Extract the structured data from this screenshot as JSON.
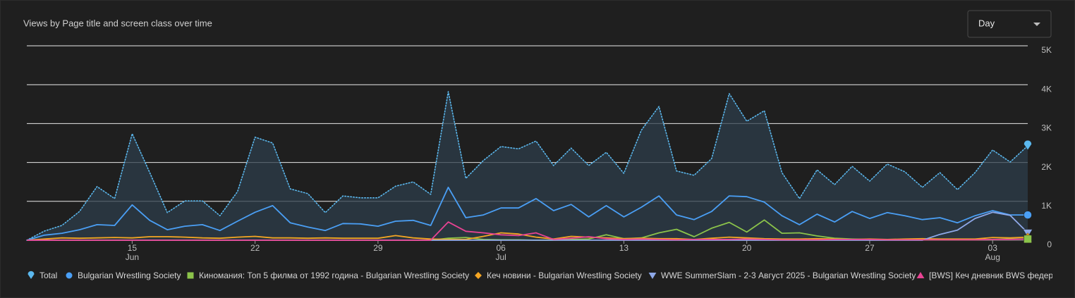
{
  "interval_select": "Day",
  "chart_data": {
    "type": "line",
    "title": "Views by Page title and screen class over time",
    "x": [
      "06-09",
      "06-10",
      "06-11",
      "06-12",
      "06-13",
      "06-14",
      "06-15",
      "06-16",
      "06-17",
      "06-18",
      "06-19",
      "06-20",
      "06-21",
      "06-22",
      "06-23",
      "06-24",
      "06-25",
      "06-26",
      "06-27",
      "06-28",
      "06-29",
      "06-30",
      "07-01",
      "07-02",
      "07-03",
      "07-04",
      "07-05",
      "07-06",
      "07-07",
      "07-08",
      "07-09",
      "07-10",
      "07-11",
      "07-12",
      "07-13",
      "07-14",
      "07-15",
      "07-16",
      "07-17",
      "07-18",
      "07-19",
      "07-20",
      "07-21",
      "07-22",
      "07-23",
      "07-24",
      "07-25",
      "07-26",
      "07-27",
      "07-28",
      "07-29",
      "07-30",
      "07-31",
      "08-01",
      "08-02",
      "08-03",
      "08-04",
      "08-05"
    ],
    "xticks": [
      {
        "value": "06-15",
        "label": "15",
        "month": "Jun"
      },
      {
        "value": "06-22",
        "label": "22"
      },
      {
        "value": "06-29",
        "label": "29"
      },
      {
        "value": "07-06",
        "label": "06",
        "month": "Jul"
      },
      {
        "value": "07-13",
        "label": "13"
      },
      {
        "value": "07-20",
        "label": "20"
      },
      {
        "value": "07-27",
        "label": "27"
      },
      {
        "value": "08-03",
        "label": "03",
        "month": "Aug"
      }
    ],
    "ylim": [
      0,
      5000
    ],
    "yticks": [
      0,
      {
        "value": 1000,
        "label": "1K"
      },
      {
        "value": 2000,
        "label": "2K"
      },
      {
        "value": 3000,
        "label": "3K"
      },
      {
        "value": 4000,
        "label": "4K"
      },
      {
        "value": 5000,
        "label": "5K"
      }
    ],
    "grid": true,
    "legend": "bottom",
    "series": [
      {
        "name": "Total",
        "color": "#5bb8ee",
        "marker": "pin",
        "style": "dotted",
        "area": true,
        "values": [
          0,
          235,
          380,
          740,
          1380,
          1070,
          2740,
          1740,
          710,
          1010,
          1010,
          630,
          1250,
          2650,
          2500,
          1320,
          1200,
          710,
          1140,
          1090,
          1090,
          1390,
          1500,
          1180,
          3820,
          1590,
          2050,
          2410,
          2350,
          2550,
          1920,
          2370,
          1920,
          2260,
          1720,
          2830,
          3440,
          1780,
          1670,
          2100,
          3770,
          3060,
          3330,
          1740,
          1070,
          1810,
          1430,
          1900,
          1520,
          1960,
          1760,
          1360,
          1740,
          1300,
          1740,
          2320,
          2010,
          2430
        ]
      },
      {
        "name": "Bulgarian Wrestling Society",
        "color": "#4a9ff5",
        "marker": "circle",
        "values": [
          0,
          130,
          180,
          270,
          400,
          380,
          910,
          510,
          270,
          360,
          400,
          250,
          490,
          720,
          890,
          450,
          340,
          250,
          430,
          420,
          360,
          490,
          510,
          380,
          1360,
          580,
          650,
          830,
          830,
          1070,
          760,
          920,
          600,
          890,
          600,
          850,
          1140,
          650,
          530,
          740,
          1140,
          1120,
          980,
          630,
          400,
          670,
          470,
          740,
          560,
          710,
          630,
          530,
          580,
          450,
          630,
          760,
          650,
          650
        ]
      },
      {
        "name": "Киномания: Топ 5 филма от 1992 година - Bulgarian Wrestling Society",
        "color": "#8bc34a",
        "marker": "square",
        "values": [
          0,
          0,
          0,
          0,
          0,
          0,
          0,
          0,
          0,
          0,
          0,
          0,
          0,
          0,
          0,
          0,
          0,
          0,
          0,
          0,
          0,
          0,
          0,
          0,
          50,
          70,
          20,
          10,
          10,
          0,
          0,
          20,
          30,
          140,
          40,
          60,
          190,
          280,
          90,
          310,
          460,
          210,
          520,
          180,
          190,
          110,
          50,
          30,
          20,
          20,
          10,
          10,
          10,
          10,
          10,
          20,
          30,
          30
        ]
      },
      {
        "name": "Кеч новини - Bulgarian Wrestling Society",
        "color": "#f5a623",
        "marker": "diamond",
        "values": [
          0,
          30,
          60,
          50,
          60,
          70,
          60,
          90,
          90,
          80,
          60,
          50,
          80,
          100,
          60,
          60,
          50,
          60,
          50,
          50,
          50,
          120,
          60,
          30,
          20,
          20,
          100,
          190,
          160,
          80,
          30,
          100,
          80,
          60,
          40,
          50,
          40,
          40,
          20,
          50,
          80,
          60,
          40,
          30,
          30,
          40,
          30,
          20,
          30,
          20,
          30,
          40,
          30,
          30,
          30,
          70,
          60,
          80
        ]
      },
      {
        "name": "WWE SummerSlam - 2-3 Август 2025 - Bulgarian Wrestling Society",
        "color": "#8ea8e8",
        "marker": "triangle-down",
        "values": [
          0,
          0,
          0,
          0,
          0,
          0,
          0,
          0,
          0,
          0,
          0,
          0,
          0,
          0,
          0,
          0,
          0,
          0,
          0,
          0,
          0,
          0,
          0,
          0,
          0,
          0,
          0,
          0,
          0,
          0,
          0,
          0,
          0,
          0,
          0,
          0,
          0,
          0,
          0,
          0,
          0,
          0,
          0,
          0,
          0,
          0,
          0,
          0,
          0,
          0,
          0,
          0,
          150,
          260,
          560,
          720,
          640,
          190
        ]
      },
      {
        "name": "[BWS] Кеч дневник BWS федера",
        "color": "#e84393",
        "marker": "triangle-up",
        "values": [
          0,
          0,
          0,
          0,
          0,
          0,
          0,
          0,
          0,
          0,
          0,
          0,
          0,
          0,
          0,
          0,
          0,
          0,
          0,
          0,
          0,
          0,
          0,
          0,
          470,
          230,
          190,
          140,
          120,
          190,
          20,
          50,
          90,
          40,
          20,
          30,
          20,
          10,
          20,
          20,
          20,
          30,
          20,
          10,
          10,
          10,
          20,
          20,
          20,
          10,
          10,
          10,
          10,
          10,
          10,
          20,
          20,
          30
        ]
      }
    ]
  }
}
